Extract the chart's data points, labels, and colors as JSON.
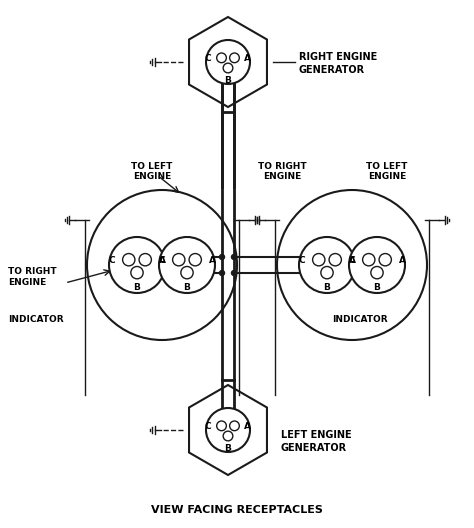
{
  "title": "VIEW FACING RECEPTACLES",
  "bg_color": "#ffffff",
  "line_color": "#1a1a1a",
  "text_color": "#000000",
  "figsize": [
    4.74,
    5.28
  ],
  "dpi": 100,
  "right_gen_label": [
    "RIGHT ENGINE",
    "GENERATOR"
  ],
  "left_gen_label": [
    "LEFT ENGINE",
    "GENERATOR"
  ],
  "left_ind_labels": {
    "to_right": "TO RIGHT\nENGINE",
    "to_left": "TO LEFT\nENGINE",
    "indicator": "INDICATOR"
  },
  "right_ind_labels": {
    "to_right": "TO RIGHT\nENGINE",
    "to_left": "TO LEFT\nENGINE",
    "indicator": "INDICATOR"
  }
}
